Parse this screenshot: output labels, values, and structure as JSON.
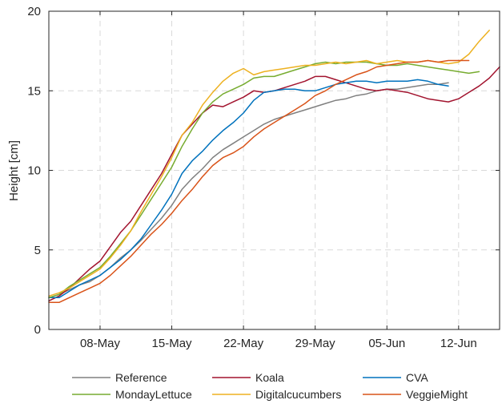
{
  "chart_data": {
    "type": "line",
    "title": "",
    "xlabel": "",
    "ylabel": "Height [cm]",
    "x_start": "2023-05-03",
    "x_end": "2023-06-16",
    "xlim": [
      "2023-05-03",
      "2023-06-16"
    ],
    "ylim": [
      0,
      20
    ],
    "x_ticks": [
      {
        "date": "2023-05-08",
        "label": "08-May"
      },
      {
        "date": "2023-05-15",
        "label": "15-May"
      },
      {
        "date": "2023-05-22",
        "label": "22-May"
      },
      {
        "date": "2023-05-29",
        "label": "29-May"
      },
      {
        "date": "2023-06-05",
        "label": "05-Jun"
      },
      {
        "date": "2023-06-12",
        "label": "12-Jun"
      }
    ],
    "y_ticks": [
      0,
      5,
      10,
      15,
      20
    ],
    "grid": true,
    "legend_position": "bottom",
    "series": [
      {
        "name": "Reference",
        "color": "#808080",
        "dates": [
          "2023-05-03",
          "2023-05-04",
          "2023-05-05",
          "2023-05-06",
          "2023-05-07",
          "2023-05-08",
          "2023-05-09",
          "2023-05-10",
          "2023-05-11",
          "2023-05-12",
          "2023-05-13",
          "2023-05-14",
          "2023-05-15",
          "2023-05-16",
          "2023-05-17",
          "2023-05-18",
          "2023-05-19",
          "2023-05-20",
          "2023-05-21",
          "2023-05-22",
          "2023-05-23",
          "2023-05-24",
          "2023-05-25",
          "2023-05-26",
          "2023-05-27",
          "2023-05-28",
          "2023-05-29",
          "2023-05-30",
          "2023-05-31",
          "2023-06-01",
          "2023-06-02",
          "2023-06-03",
          "2023-06-04",
          "2023-06-05",
          "2023-06-06",
          "2023-06-07",
          "2023-06-08",
          "2023-06-09",
          "2023-06-10",
          "2023-06-11"
        ],
        "values": [
          2.0,
          2.2,
          2.5,
          2.8,
          3.0,
          3.4,
          3.9,
          4.5,
          5.0,
          5.6,
          6.3,
          7.0,
          7.8,
          8.8,
          9.5,
          10.1,
          10.8,
          11.3,
          11.7,
          12.1,
          12.5,
          12.9,
          13.2,
          13.4,
          13.6,
          13.8,
          14.0,
          14.2,
          14.4,
          14.5,
          14.7,
          14.8,
          15.0,
          15.1,
          15.1,
          15.2,
          15.3,
          15.4,
          15.4,
          15.5
        ]
      },
      {
        "name": "Koala",
        "color": "#a2142f",
        "dates": [
          "2023-05-03",
          "2023-05-04",
          "2023-05-05",
          "2023-05-06",
          "2023-05-07",
          "2023-05-08",
          "2023-05-09",
          "2023-05-10",
          "2023-05-11",
          "2023-05-12",
          "2023-05-13",
          "2023-05-14",
          "2023-05-15",
          "2023-05-16",
          "2023-05-17",
          "2023-05-18",
          "2023-05-19",
          "2023-05-20",
          "2023-05-21",
          "2023-05-22",
          "2023-05-23",
          "2023-05-24",
          "2023-05-25",
          "2023-05-26",
          "2023-05-27",
          "2023-05-28",
          "2023-05-29",
          "2023-05-30",
          "2023-05-31",
          "2023-06-01",
          "2023-06-02",
          "2023-06-03",
          "2023-06-04",
          "2023-06-05",
          "2023-06-06",
          "2023-06-07",
          "2023-06-08",
          "2023-06-09",
          "2023-06-10",
          "2023-06-11",
          "2023-06-12",
          "2023-06-13",
          "2023-06-14",
          "2023-06-15",
          "2023-06-16"
        ],
        "values": [
          1.8,
          2.1,
          2.6,
          3.2,
          3.8,
          4.3,
          5.2,
          6.1,
          6.8,
          7.8,
          8.8,
          9.8,
          11.0,
          12.2,
          12.9,
          13.6,
          14.1,
          14.0,
          14.3,
          14.6,
          15.0,
          14.9,
          15.0,
          15.2,
          15.4,
          15.6,
          15.9,
          15.9,
          15.7,
          15.5,
          15.3,
          15.1,
          15.0,
          15.1,
          15.0,
          14.9,
          14.7,
          14.5,
          14.4,
          14.3,
          14.5,
          14.9,
          15.3,
          15.8,
          16.5
        ]
      },
      {
        "name": "CVA",
        "color": "#0072bd",
        "dates": [
          "2023-05-03",
          "2023-05-04",
          "2023-05-05",
          "2023-05-06",
          "2023-05-07",
          "2023-05-08",
          "2023-05-09",
          "2023-05-10",
          "2023-05-11",
          "2023-05-12",
          "2023-05-13",
          "2023-05-14",
          "2023-05-15",
          "2023-05-16",
          "2023-05-17",
          "2023-05-18",
          "2023-05-19",
          "2023-05-20",
          "2023-05-21",
          "2023-05-22",
          "2023-05-23",
          "2023-05-24",
          "2023-05-25",
          "2023-05-26",
          "2023-05-27",
          "2023-05-28",
          "2023-05-29",
          "2023-05-30",
          "2023-05-31",
          "2023-06-01",
          "2023-06-02",
          "2023-06-03",
          "2023-06-04",
          "2023-06-05",
          "2023-06-06",
          "2023-06-07",
          "2023-06-08",
          "2023-06-09",
          "2023-06-10",
          "2023-06-11"
        ],
        "values": [
          2.0,
          2.0,
          2.4,
          2.8,
          3.1,
          3.4,
          3.9,
          4.4,
          5.0,
          5.7,
          6.6,
          7.5,
          8.5,
          9.8,
          10.6,
          11.2,
          11.9,
          12.5,
          13.0,
          13.6,
          14.4,
          14.9,
          15.0,
          15.1,
          15.1,
          15.0,
          15.0,
          15.2,
          15.4,
          15.5,
          15.6,
          15.6,
          15.5,
          15.6,
          15.6,
          15.6,
          15.7,
          15.6,
          15.4,
          15.3
        ]
      },
      {
        "name": "MondayLettuce",
        "color": "#77ac30",
        "dates": [
          "2023-05-03",
          "2023-05-04",
          "2023-05-05",
          "2023-05-06",
          "2023-05-07",
          "2023-05-08",
          "2023-05-09",
          "2023-05-10",
          "2023-05-11",
          "2023-05-12",
          "2023-05-13",
          "2023-05-14",
          "2023-05-15",
          "2023-05-16",
          "2023-05-17",
          "2023-05-18",
          "2023-05-19",
          "2023-05-20",
          "2023-05-21",
          "2023-05-22",
          "2023-05-23",
          "2023-05-24",
          "2023-05-25",
          "2023-05-26",
          "2023-05-27",
          "2023-05-28",
          "2023-05-29",
          "2023-05-30",
          "2023-05-31",
          "2023-06-01",
          "2023-06-02",
          "2023-06-03",
          "2023-06-04",
          "2023-06-05",
          "2023-06-06",
          "2023-06-07",
          "2023-06-08",
          "2023-06-09",
          "2023-06-10",
          "2023-06-11",
          "2023-06-12",
          "2023-06-13",
          "2023-06-14"
        ],
        "values": [
          2.0,
          2.2,
          2.7,
          3.1,
          3.5,
          3.9,
          4.6,
          5.4,
          6.2,
          7.2,
          8.2,
          9.2,
          10.2,
          11.5,
          12.6,
          13.6,
          14.3,
          14.8,
          15.1,
          15.4,
          15.8,
          15.9,
          15.9,
          16.1,
          16.3,
          16.5,
          16.7,
          16.8,
          16.7,
          16.8,
          16.8,
          16.8,
          16.7,
          16.6,
          16.6,
          16.7,
          16.6,
          16.5,
          16.4,
          16.3,
          16.2,
          16.1,
          16.2
        ]
      },
      {
        "name": "Digitalcucumbers",
        "color": "#edb120",
        "dates": [
          "2023-05-03",
          "2023-05-04",
          "2023-05-05",
          "2023-05-06",
          "2023-05-07",
          "2023-05-08",
          "2023-05-09",
          "2023-05-10",
          "2023-05-11",
          "2023-05-12",
          "2023-05-13",
          "2023-05-14",
          "2023-05-15",
          "2023-05-16",
          "2023-05-17",
          "2023-05-18",
          "2023-05-19",
          "2023-05-20",
          "2023-05-21",
          "2023-05-22",
          "2023-05-23",
          "2023-05-24",
          "2023-05-25",
          "2023-05-26",
          "2023-05-27",
          "2023-05-28",
          "2023-05-29",
          "2023-05-30",
          "2023-05-31",
          "2023-06-01",
          "2023-06-02",
          "2023-06-03",
          "2023-06-04",
          "2023-06-05",
          "2023-06-06",
          "2023-06-07",
          "2023-06-08",
          "2023-06-09",
          "2023-06-10",
          "2023-06-11",
          "2023-06-12",
          "2023-06-13",
          "2023-06-14",
          "2023-06-15"
        ],
        "values": [
          2.1,
          2.3,
          2.6,
          3.0,
          3.4,
          3.8,
          4.5,
          5.3,
          6.2,
          7.4,
          8.5,
          9.6,
          10.8,
          12.2,
          13.0,
          14.1,
          14.9,
          15.6,
          16.1,
          16.4,
          16.0,
          16.2,
          16.3,
          16.4,
          16.5,
          16.6,
          16.6,
          16.7,
          16.8,
          16.7,
          16.8,
          16.9,
          16.7,
          16.8,
          16.9,
          16.8,
          16.8,
          16.9,
          16.8,
          16.7,
          16.8,
          17.3,
          18.1,
          18.8
        ]
      },
      {
        "name": "VeggieMight",
        "color": "#d95319",
        "dates": [
          "2023-05-03",
          "2023-05-04",
          "2023-05-05",
          "2023-05-06",
          "2023-05-07",
          "2023-05-08",
          "2023-05-09",
          "2023-05-10",
          "2023-05-11",
          "2023-05-12",
          "2023-05-13",
          "2023-05-14",
          "2023-05-15",
          "2023-05-16",
          "2023-05-17",
          "2023-05-18",
          "2023-05-19",
          "2023-05-20",
          "2023-05-21",
          "2023-05-22",
          "2023-05-23",
          "2023-05-24",
          "2023-05-25",
          "2023-05-26",
          "2023-05-27",
          "2023-05-28",
          "2023-05-29",
          "2023-05-30",
          "2023-05-31",
          "2023-06-01",
          "2023-06-02",
          "2023-06-03",
          "2023-06-04",
          "2023-06-05",
          "2023-06-06",
          "2023-06-07",
          "2023-06-08",
          "2023-06-09",
          "2023-06-10",
          "2023-06-11",
          "2023-06-12",
          "2023-06-13"
        ],
        "values": [
          1.7,
          1.7,
          2.0,
          2.3,
          2.6,
          2.9,
          3.4,
          4.0,
          4.6,
          5.3,
          6.0,
          6.6,
          7.3,
          8.1,
          8.8,
          9.6,
          10.3,
          10.8,
          11.1,
          11.5,
          12.1,
          12.6,
          13.0,
          13.4,
          13.8,
          14.2,
          14.7,
          15.0,
          15.4,
          15.7,
          16.0,
          16.2,
          16.5,
          16.6,
          16.7,
          16.8,
          16.8,
          16.9,
          16.8,
          16.9,
          16.9,
          16.9
        ]
      }
    ]
  }
}
